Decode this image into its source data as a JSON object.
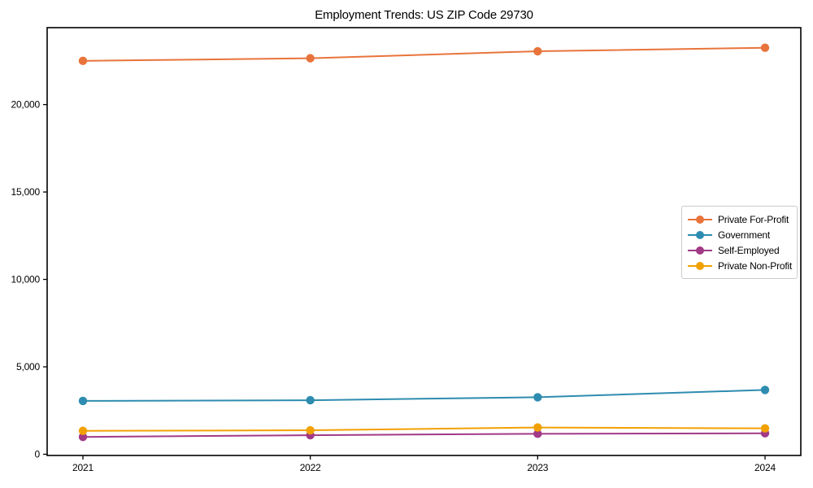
{
  "chart_data": {
    "type": "line",
    "title": "Employment Trends: US ZIP Code 29730",
    "x": [
      2021,
      2022,
      2023,
      2024
    ],
    "x_tick_labels": [
      "2021",
      "2022",
      "2023",
      "2024"
    ],
    "y_ticks": [
      0,
      5000,
      10000,
      15000,
      20000
    ],
    "y_tick_labels": [
      "0",
      "5,000",
      "10,000",
      "15,000",
      "20,000"
    ],
    "ylim": [
      -70,
      24400
    ],
    "xlabel": "",
    "ylabel": "",
    "grid": false,
    "legend_position": "center-right",
    "axis_color": "#000000",
    "series": [
      {
        "name": "Private For-Profit",
        "color": "#e8743b",
        "values": [
          22500,
          22650,
          23050,
          23250
        ]
      },
      {
        "name": "Government",
        "color": "#2e8cb0",
        "values": [
          3050,
          3090,
          3260,
          3680
        ]
      },
      {
        "name": "Self-Employed",
        "color": "#a23a86",
        "values": [
          990,
          1090,
          1170,
          1200
        ]
      },
      {
        "name": "Private Non-Profit",
        "color": "#f2a104",
        "values": [
          1340,
          1370,
          1530,
          1480
        ]
      }
    ]
  }
}
